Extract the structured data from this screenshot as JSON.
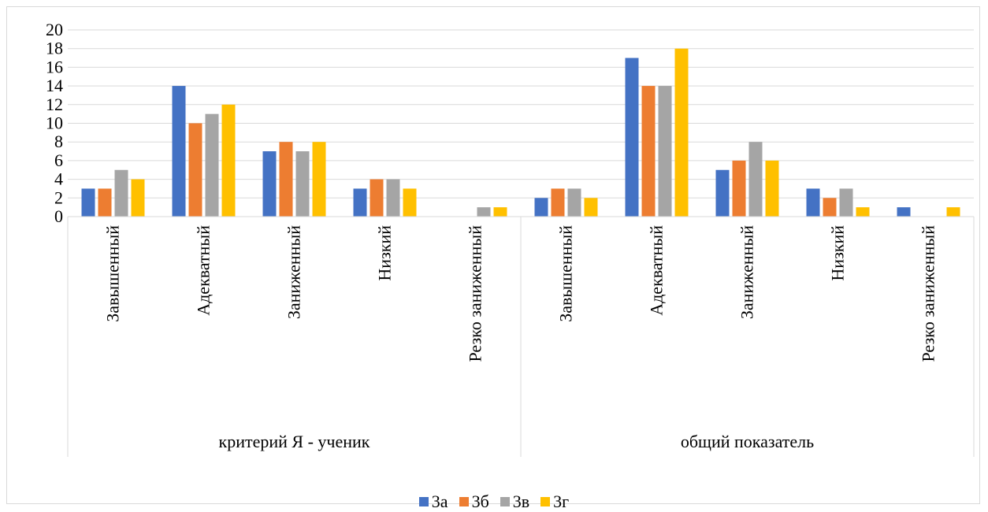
{
  "chart_data": {
    "type": "bar",
    "groups": [
      {
        "label": "критерий Я - ученик",
        "categories": [
          "Завышенный",
          "Адекватный",
          "Заниженный",
          "Низкий",
          "Резко заниженный"
        ]
      },
      {
        "label": "общий показатель",
        "categories": [
          "Завышенный",
          "Адекватный",
          "Заниженный",
          "Низкий",
          "Резко заниженный"
        ]
      }
    ],
    "categories": [
      "Завышенный",
      "Адекватный",
      "Заниженный",
      "Низкий",
      "Резко заниженный",
      "Завышенный",
      "Адекватный",
      "Заниженный",
      "Низкий",
      "Резко заниженный"
    ],
    "series": [
      {
        "name": "3а",
        "color": "#4472C4",
        "values": [
          3,
          14,
          7,
          3,
          0,
          2,
          17,
          5,
          3,
          1
        ]
      },
      {
        "name": "3б",
        "color": "#ED7D31",
        "values": [
          3,
          10,
          8,
          4,
          0,
          3,
          14,
          6,
          2,
          0
        ]
      },
      {
        "name": "3в",
        "color": "#A5A5A5",
        "values": [
          5,
          11,
          7,
          4,
          1,
          3,
          14,
          8,
          3,
          0
        ]
      },
      {
        "name": "3г",
        "color": "#FFC000",
        "values": [
          4,
          12,
          8,
          3,
          1,
          2,
          18,
          6,
          1,
          1
        ]
      }
    ],
    "ylim": [
      0,
      20
    ],
    "yticks": [
      "0",
      "2",
      "4",
      "6",
      "8",
      "10",
      "12",
      "14",
      "16",
      "18",
      "20"
    ],
    "grid": true,
    "legend_position": "bottom"
  }
}
